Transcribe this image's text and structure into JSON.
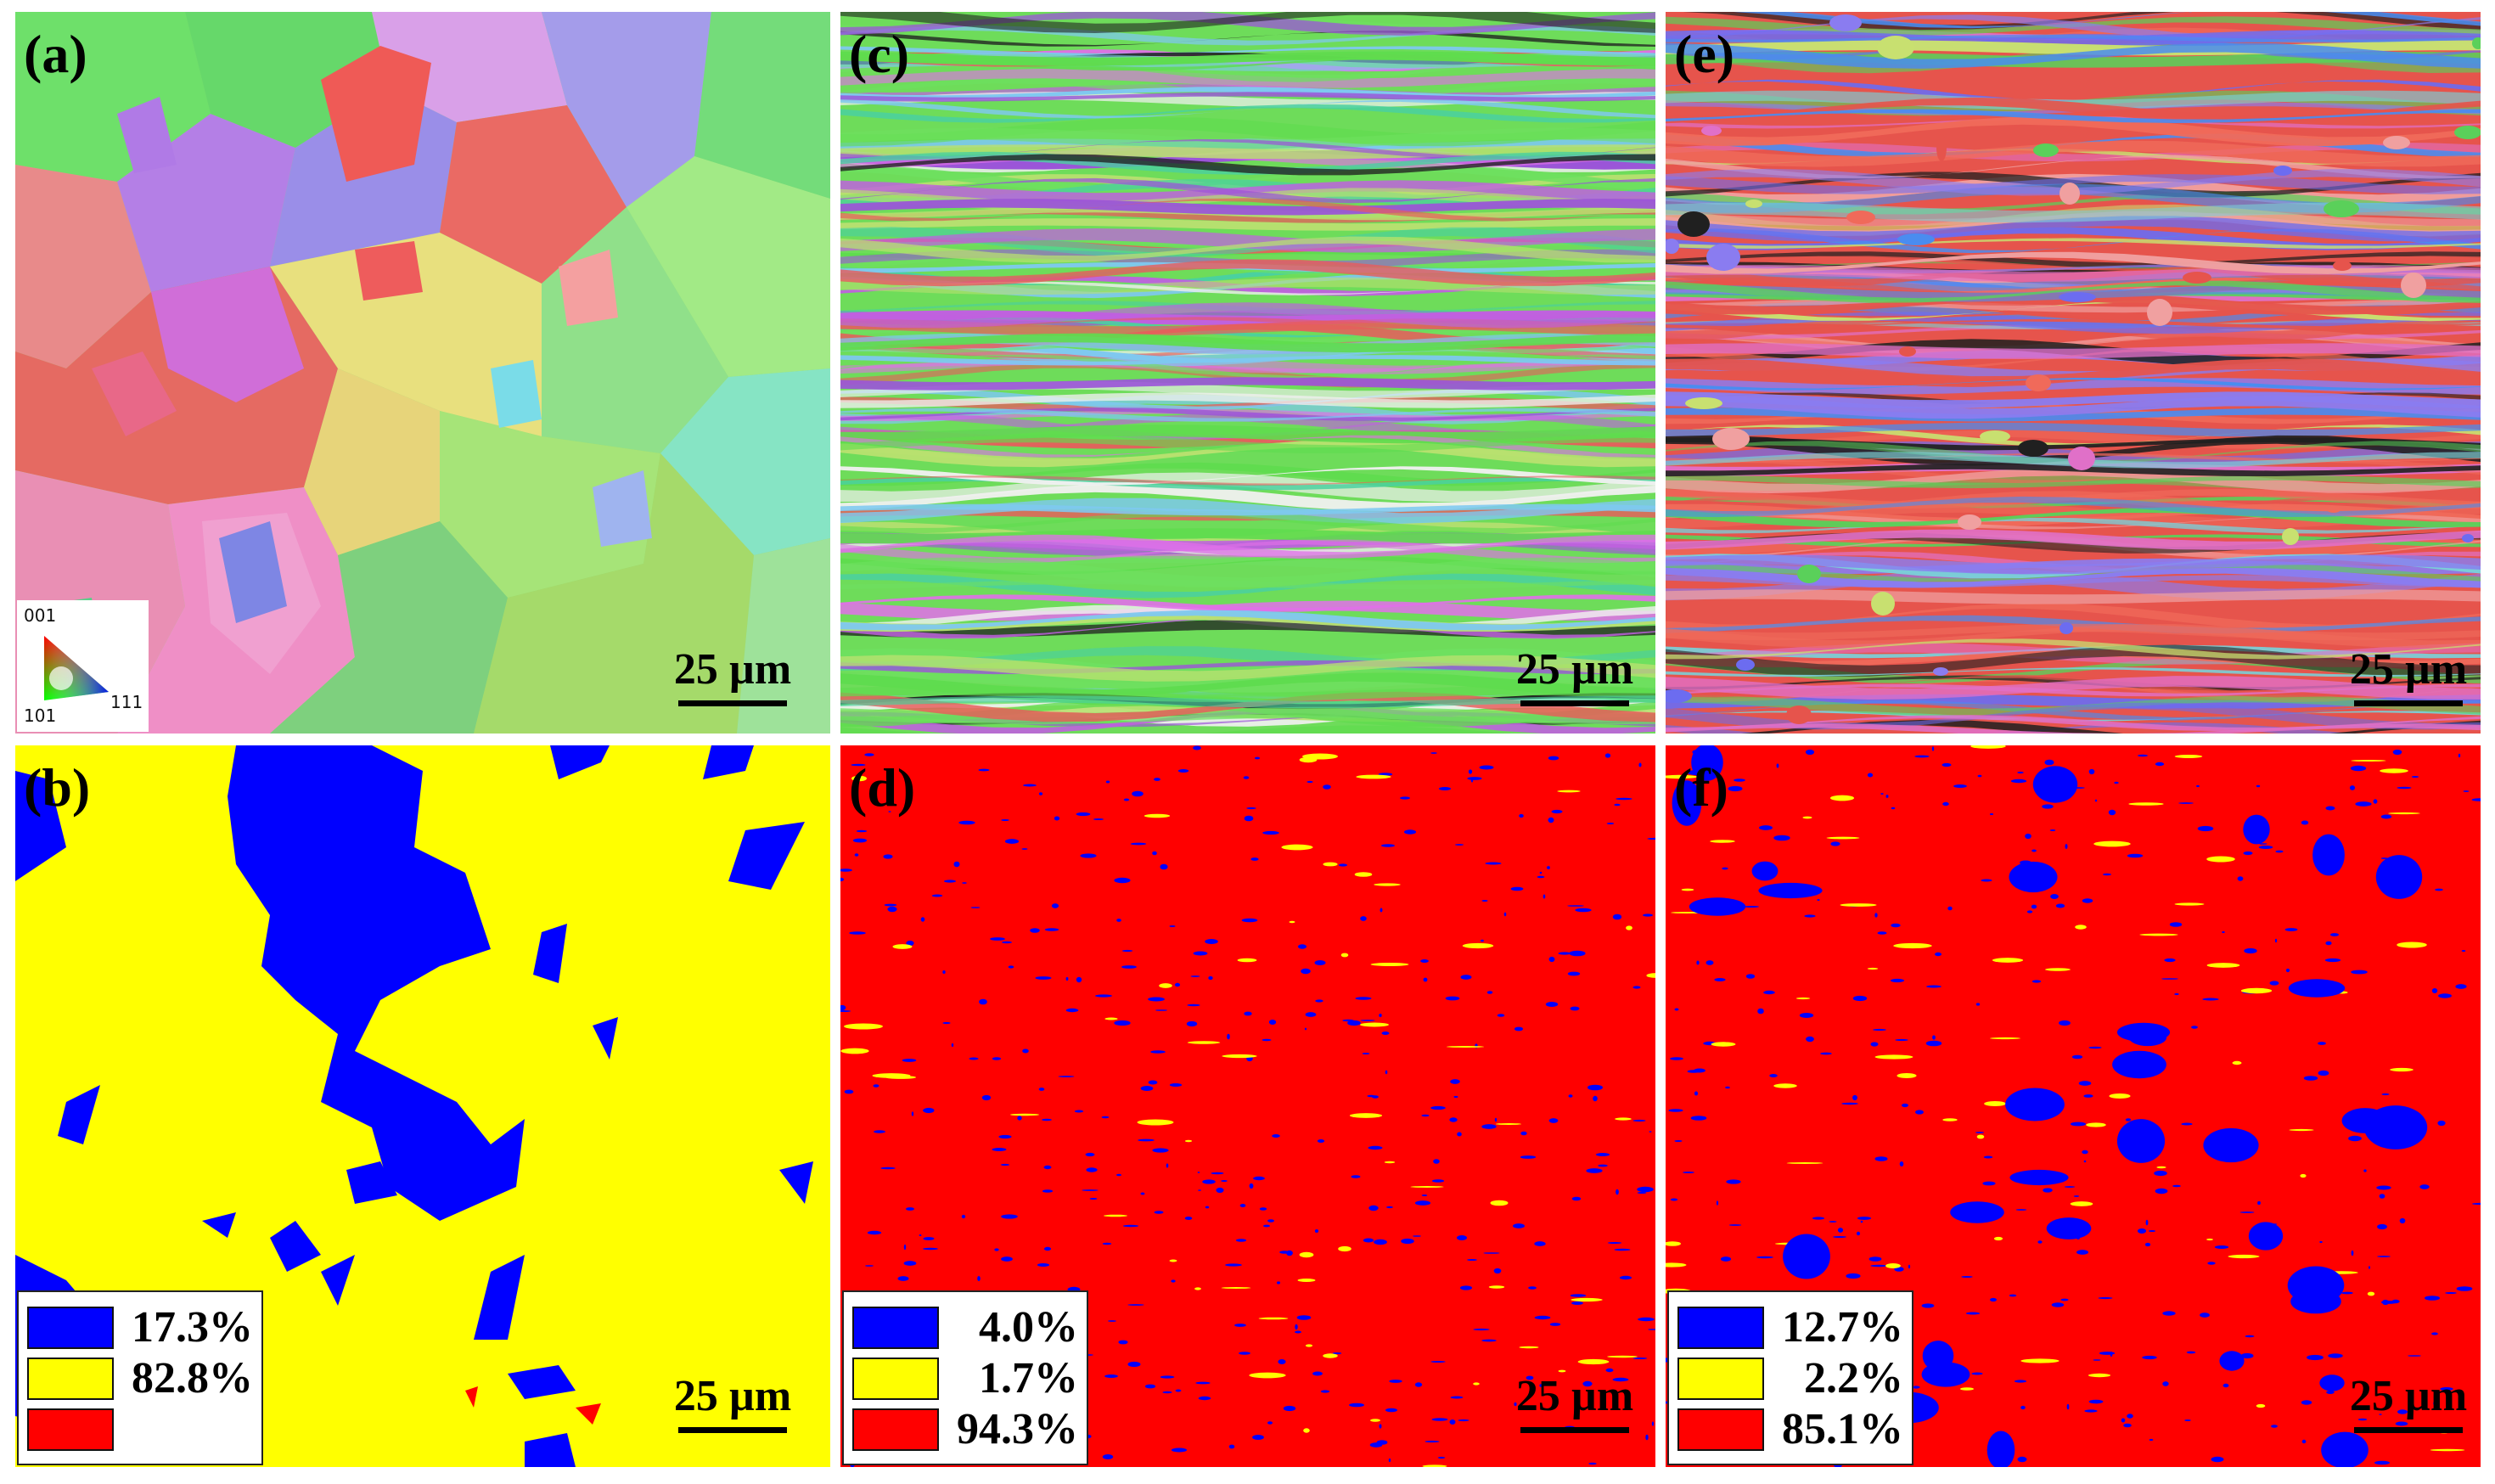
{
  "panels": [
    {
      "label": "(a)",
      "type": "ipf",
      "scale": "25 µm",
      "ipf_key": {
        "c001": "001",
        "c101": "101",
        "c111": "111"
      }
    },
    {
      "label": "(c)",
      "type": "ipf",
      "scale": "25 µm"
    },
    {
      "label": "(e)",
      "type": "ipf",
      "scale": "25 µm"
    },
    {
      "label": "(b)",
      "type": "phase",
      "scale": "25 µm",
      "legend": [
        {
          "color": "#0000ff",
          "value": "17.3%"
        },
        {
          "color": "#ffff00",
          "value": "82.8%"
        },
        {
          "color": "#ff0000",
          "value": ""
        }
      ]
    },
    {
      "label": "(d)",
      "type": "phase",
      "scale": "25 µm",
      "legend": [
        {
          "color": "#0000ff",
          "value": "4.0%"
        },
        {
          "color": "#ffff00",
          "value": "1.7%"
        },
        {
          "color": "#ff0000",
          "value": "94.3%"
        }
      ]
    },
    {
      "label": "(f)",
      "type": "phase",
      "scale": "25 µm",
      "legend": [
        {
          "color": "#0000ff",
          "value": "12.7%"
        },
        {
          "color": "#ffff00",
          "value": "2.2%"
        },
        {
          "color": "#ff0000",
          "value": "85.1%"
        }
      ]
    }
  ],
  "colors": {
    "red": "#ff0000",
    "yellow": "#ffff00",
    "blue": "#0000ff",
    "ipf_green": "#5fdc5a",
    "ipf_magenta": "#c45ae0",
    "ipf_red": "#e8584e",
    "ipf_blue": "#6b6df0"
  }
}
